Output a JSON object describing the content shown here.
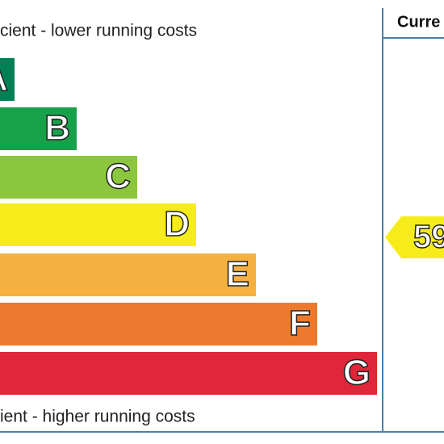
{
  "header": {
    "top_note": "cient - lower running costs",
    "column": "Curre"
  },
  "bands": [
    {
      "letter": "A",
      "color": "#008054"
    },
    {
      "letter": "B",
      "color": "#19a04a"
    },
    {
      "letter": "C",
      "color": "#8cc63f"
    },
    {
      "letter": "D",
      "color": "#f7ec1b"
    },
    {
      "letter": "E",
      "color": "#f5b040"
    },
    {
      "letter": "F",
      "color": "#ec7a2e"
    },
    {
      "letter": "G",
      "color": "#e0263a"
    }
  ],
  "current": {
    "rating": "59",
    "color": "#f7ec1b"
  },
  "footer": {
    "bottom_note": "ient - higher running costs"
  }
}
